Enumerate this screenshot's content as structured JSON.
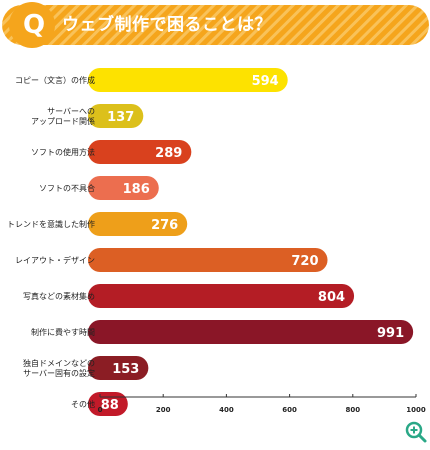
{
  "header": {
    "q_label": "Q",
    "title": "ウェブ制作で困ることは？"
  },
  "chart_data": {
    "type": "bar",
    "orientation": "horizontal",
    "title": "",
    "xlabel": "",
    "ylabel": "",
    "xlim": [
      0,
      1000
    ],
    "xticks": [
      0,
      200,
      400,
      600,
      800,
      1000
    ],
    "grid": false,
    "legend": "none",
    "categories": [
      [
        "コピー（文言）の作成"
      ],
      [
        "サーバーへの",
        "アップロード関係"
      ],
      [
        "ソフトの使用方法"
      ],
      [
        "ソフトの不具合"
      ],
      [
        "トレンドを意識した制作"
      ],
      [
        "レイアウト・デザイン"
      ],
      [
        "写真などの素材集め"
      ],
      [
        "制作に費やす時間"
      ],
      [
        "独自ドメインなどの",
        "サーバー固有の設定"
      ],
      [
        "その他"
      ]
    ],
    "values": [
      594,
      137,
      289,
      186,
      276,
      720,
      804,
      991,
      153,
      88
    ],
    "colors": [
      "#fde200",
      "#dcc01b",
      "#d9411e",
      "#ec6e4f",
      "#ee9f1a",
      "#dc5f24",
      "#b41d25",
      "#8a1627",
      "#8b1d24",
      "#c21a29"
    ]
  },
  "colors": {
    "banner": "#f5a51c",
    "banner_stripe": "#f9c259",
    "axis": "#333333",
    "zoom_icon": "#2aa887"
  },
  "icons": {
    "zoom": "zoom-in-icon"
  }
}
